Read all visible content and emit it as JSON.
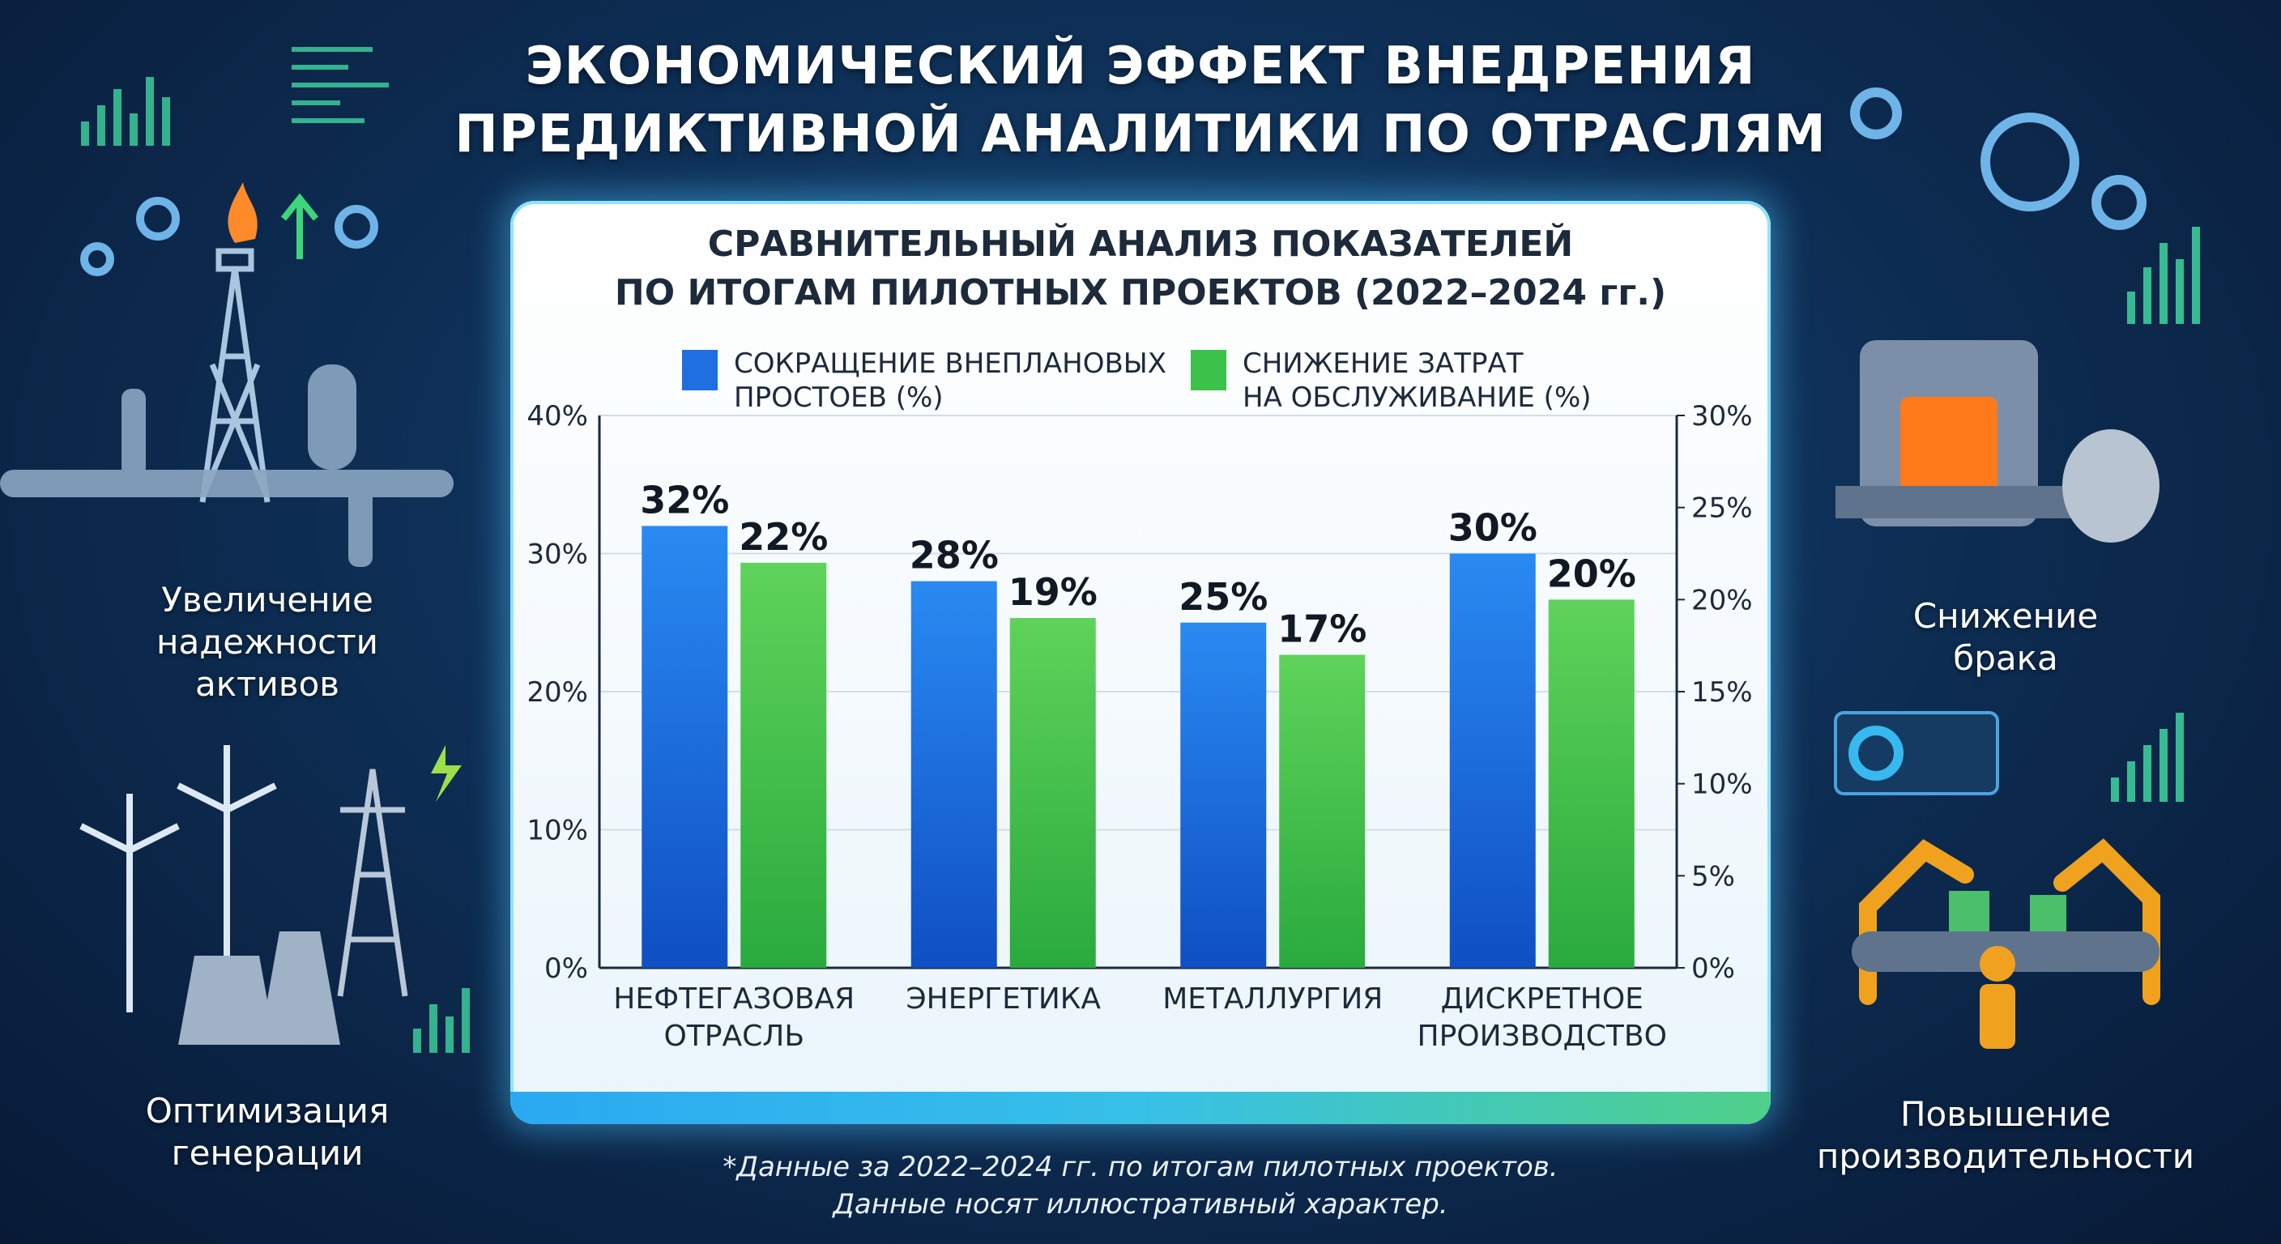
{
  "header": {
    "title_line1": "ЭКОНОМИЧЕСКИЙ ЭФФЕКТ ВНЕДРЕНИЯ",
    "title_line2": "ПРЕДИКТИВНОЙ АНАЛИТИКИ ПО ОТРАСЛЯМ"
  },
  "side_labels": {
    "top_left": [
      "Увеличение",
      "надежности",
      "активов"
    ],
    "bottom_left": [
      "Оптимизация",
      "генерации"
    ],
    "top_right": [
      "Снижение",
      "брака"
    ],
    "bottom_right": [
      "Повышение",
      "производительности"
    ]
  },
  "footnote": {
    "line1": "*Данные за 2022–2024 гг. по итогам пилотных проектов.",
    "line2": "Данные носят иллюстративный характер."
  },
  "chart_data": {
    "type": "bar",
    "title_line1": "СРАВНИТЕЛЬНЫЙ АНАЛИЗ ПОКАЗАТЕЛЕЙ",
    "title_line2": "ПО ИТОГАМ ПИЛОТНЫХ ПРОЕКТОВ (2022–2024 гг.)",
    "categories": [
      [
        "НЕФТЕГАЗОВАЯ",
        "ОТРАСЛЬ"
      ],
      [
        "ЭНЕРГЕТИКА"
      ],
      [
        "МЕТАЛЛУРГИЯ"
      ],
      [
        "ДИСКРЕТНОЕ",
        "ПРОИЗВОДСТВО"
      ]
    ],
    "series": [
      {
        "name_line1": "СОКРАЩЕНИЕ ВНЕПЛАНОВЫХ",
        "name_line2": "ПРОСТОЕВ (%)",
        "axis": "left",
        "color": "#1f6fe0",
        "values": [
          32,
          28,
          25,
          30
        ],
        "labels": [
          "32%",
          "28%",
          "25%",
          "30%"
        ]
      },
      {
        "name_line1": "СНИЖЕНИЕ ЗАТРАТ",
        "name_line2": "НА ОБСЛУЖИВАНИЕ (%)",
        "axis": "right",
        "color": "#3cc24a",
        "values": [
          22,
          19,
          17,
          20
        ],
        "labels": [
          "22%",
          "19%",
          "17%",
          "20%"
        ]
      }
    ],
    "y_left": {
      "lim": [
        0,
        40
      ],
      "ticks": [
        0,
        10,
        20,
        30,
        40
      ],
      "tick_labels": [
        "0%",
        "10%",
        "20%",
        "30%",
        "40%"
      ]
    },
    "y_right": {
      "lim": [
        0,
        30
      ],
      "ticks": [
        0,
        5,
        10,
        15,
        20,
        25,
        30
      ],
      "tick_labels": [
        "0%",
        "5%",
        "10%",
        "15%",
        "20%",
        "25%",
        "30%"
      ]
    },
    "grid": true,
    "legend": "top-center"
  }
}
